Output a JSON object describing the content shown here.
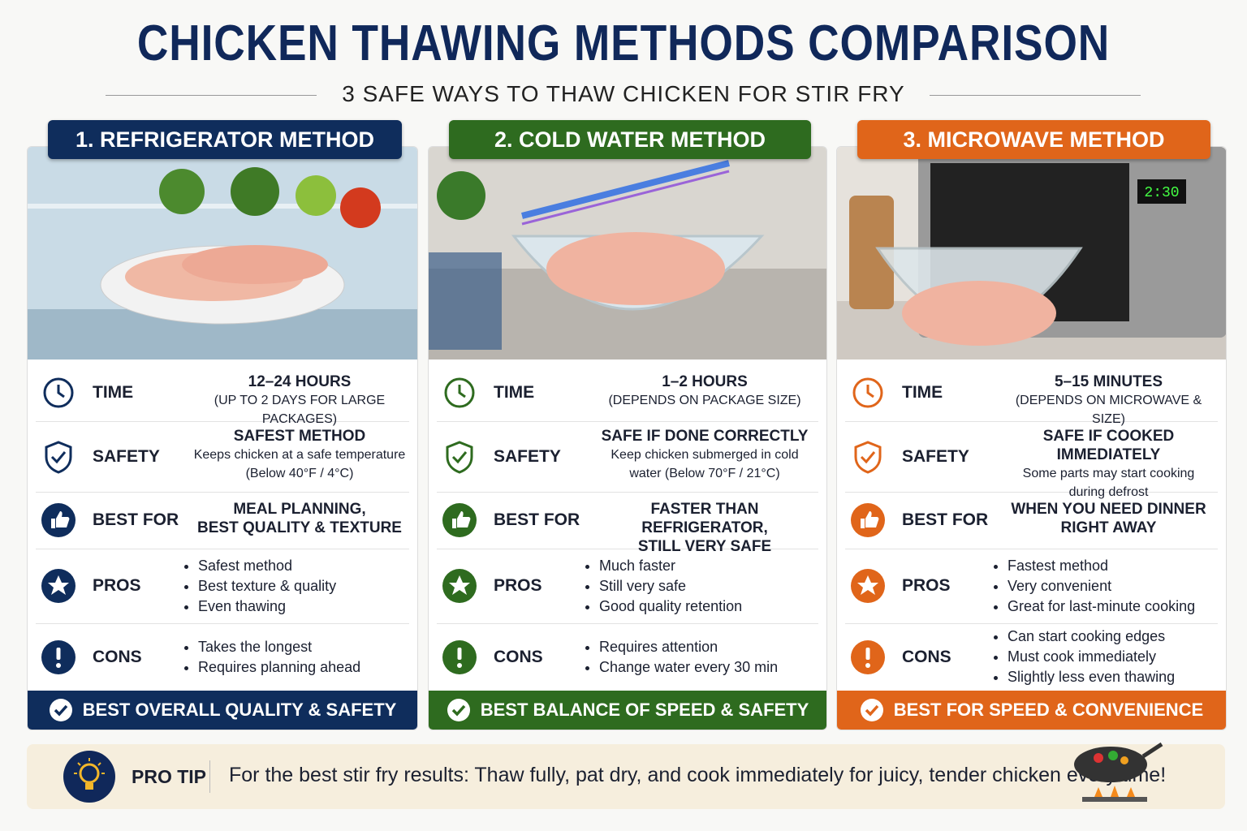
{
  "header": {
    "title": "CHICKEN THAWING METHODS COMPARISON",
    "subtitle": "3 SAFE WAYS TO THAW CHICKEN FOR STIR FRY"
  },
  "methods": [
    {
      "title": "1. REFRIGERATOR METHOD",
      "color": "#0f2d5c",
      "rows": [
        {
          "label": "TIME",
          "lines": [
            "12–24 HOURS",
            "(UP TO 2 DAYS FOR LARGE PACKAGES)"
          ]
        },
        {
          "label": "SAFETY",
          "lines": [
            "SAFEST METHOD",
            "Keeps chicken at a safe temperature",
            "(Below 40°F / 4°C)"
          ]
        },
        {
          "label": "BEST FOR",
          "lines": [
            "MEAL PLANNING,",
            "BEST QUALITY & TEXTURE"
          ]
        }
      ],
      "pros": {
        "label": "PROS",
        "items": [
          "Safest method",
          "Best texture & quality",
          "Even thawing"
        ]
      },
      "cons": {
        "label": "CONS",
        "items": [
          "Takes the longest",
          "Requires planning ahead"
        ]
      },
      "verdict": "BEST OVERALL QUALITY & SAFETY"
    },
    {
      "title": "2. COLD WATER METHOD",
      "color": "#2e6b1f",
      "rows": [
        {
          "label": "TIME",
          "lines": [
            "1–2 HOURS",
            "(DEPENDS ON PACKAGE SIZE)"
          ]
        },
        {
          "label": "SAFETY",
          "lines": [
            "SAFE IF DONE CORRECTLY",
            "Keep chicken submerged in cold",
            "water (Below 70°F / 21°C)"
          ]
        },
        {
          "label": "BEST FOR",
          "lines": [
            "FASTER THAN REFRIGERATOR,",
            "STILL VERY SAFE"
          ]
        }
      ],
      "pros": {
        "label": "PROS",
        "items": [
          "Much faster",
          "Still very safe",
          "Good quality retention"
        ]
      },
      "cons": {
        "label": "CONS",
        "items": [
          "Requires attention",
          "Change water every 30 min"
        ]
      },
      "verdict": "BEST BALANCE OF SPEED & SAFETY"
    },
    {
      "title": "3. MICROWAVE METHOD",
      "color": "#e0651a",
      "display": "2:30",
      "rows": [
        {
          "label": "TIME",
          "lines": [
            "5–15 MINUTES",
            "(DEPENDS ON MICROWAVE & SIZE)"
          ]
        },
        {
          "label": "SAFETY",
          "lines": [
            "SAFE IF COOKED IMMEDIATELY",
            "Some parts may start cooking",
            "during defrost"
          ]
        },
        {
          "label": "BEST FOR",
          "lines": [
            "WHEN YOU NEED DINNER",
            "RIGHT AWAY"
          ]
        }
      ],
      "pros": {
        "label": "PROS",
        "items": [
          "Fastest method",
          "Very convenient",
          "Great for last-minute cooking"
        ]
      },
      "cons": {
        "label": "CONS",
        "items": [
          "Can start cooking edges",
          "Must cook immediately",
          "Slightly less even thawing"
        ]
      },
      "verdict": "BEST FOR SPEED & CONVENIENCE"
    }
  ],
  "tip": {
    "label": "PRO TIP",
    "text": "For the best stir fry results: Thaw fully, pat dry, and cook immediately for juicy, tender chicken every time!"
  }
}
